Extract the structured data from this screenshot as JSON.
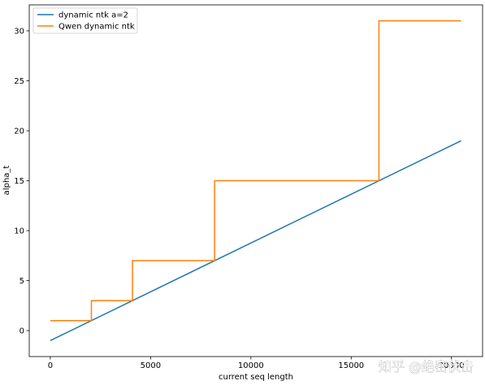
{
  "chart_data": {
    "type": "line",
    "title": "",
    "xlabel": "current seq length",
    "ylabel": "alpha_t",
    "xlim": [
      -1050,
      21550
    ],
    "ylim": [
      -2.6,
      32.6
    ],
    "xticks": [
      0,
      5000,
      10000,
      15000,
      20000
    ],
    "yticks": [
      0,
      5,
      10,
      15,
      20,
      25,
      30
    ],
    "grid": false,
    "legend_position": "top-left",
    "series": [
      {
        "name": "dynamic ntk a=2",
        "color": "#1f77b4",
        "x": [
          0,
          20480
        ],
        "y": [
          -1,
          19
        ]
      },
      {
        "name": "Qwen dynamic ntk",
        "color": "#ff7f0e",
        "x": [
          0,
          2048,
          2048,
          4096,
          4096,
          8192,
          8192,
          16384,
          16384,
          20480
        ],
        "y": [
          1,
          1,
          3,
          3,
          7,
          7,
          15,
          15,
          31,
          31
        ]
      }
    ]
  },
  "watermark": "知乎 @绝密伏击"
}
